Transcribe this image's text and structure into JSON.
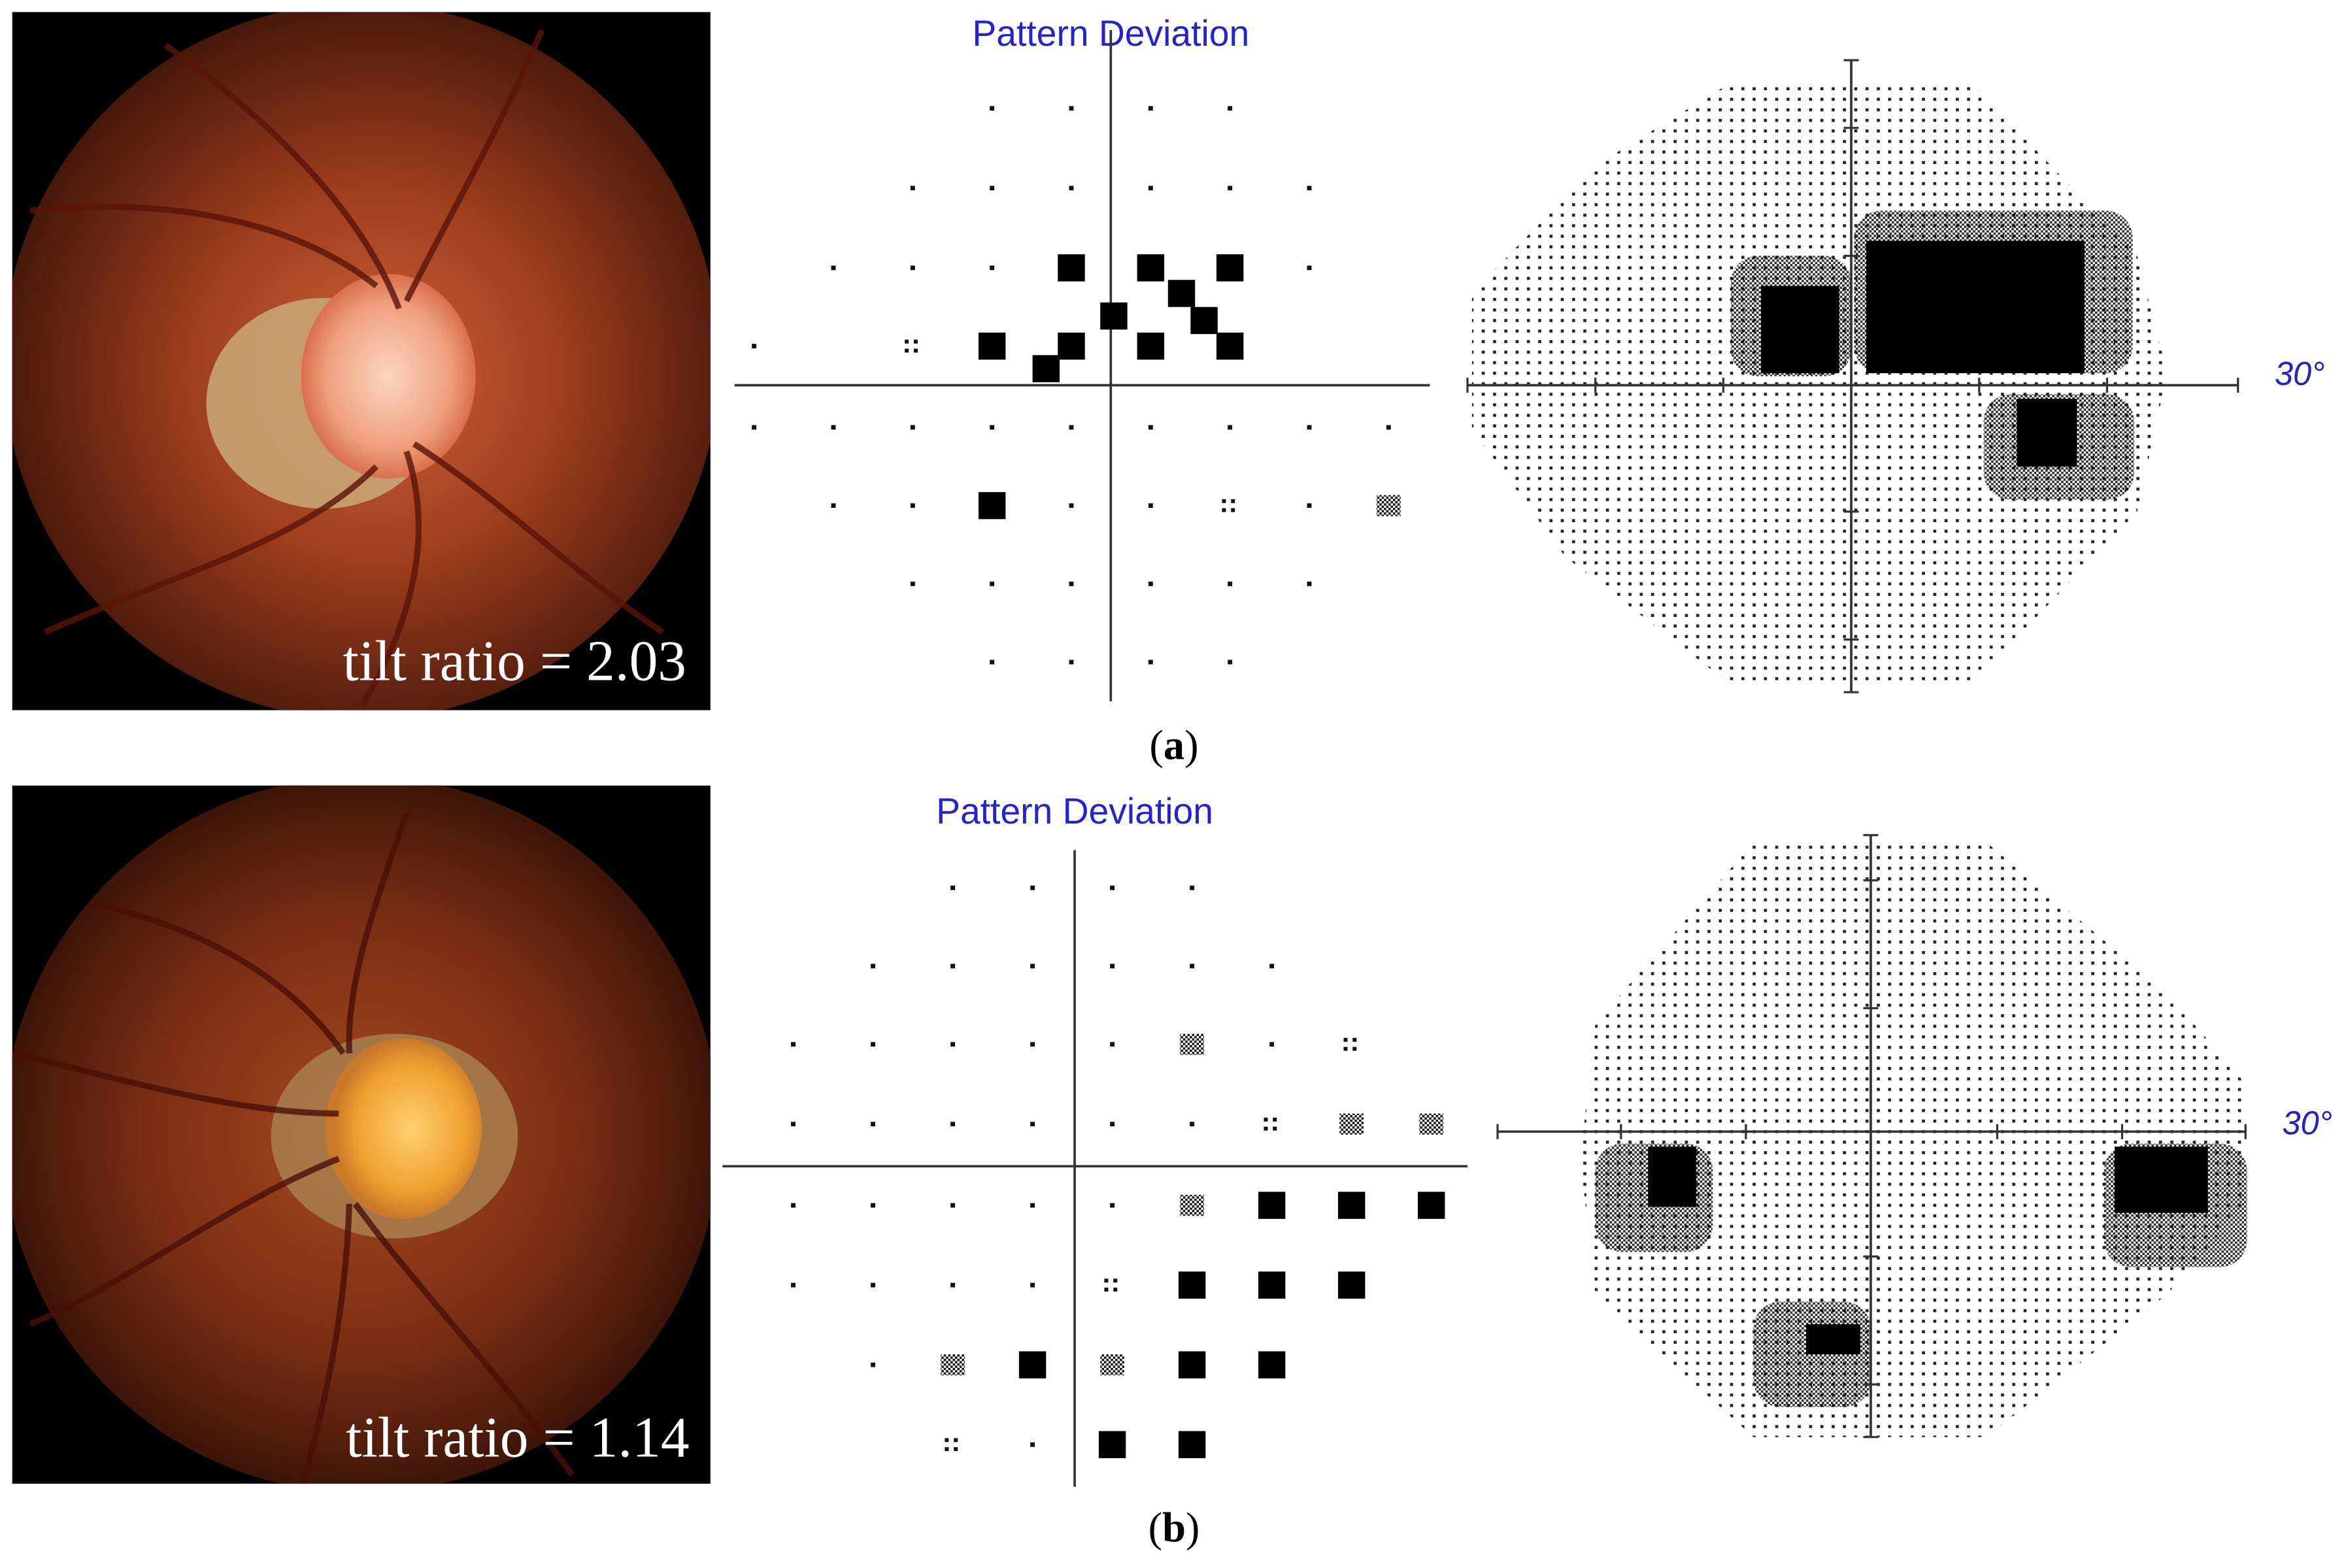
{
  "panels": [
    {
      "fundus": {
        "annotation": "tilt ratio = 2.03"
      },
      "pattern_deviation": {
        "title": "Pattern Deviation"
      },
      "grayscale": {
        "axis_label": "30°"
      },
      "caption": {
        "open": "(",
        "label": "a",
        "close": ")"
      }
    },
    {
      "fundus": {
        "annotation": "tilt ratio = 1.14"
      },
      "pattern_deviation": {
        "title": "Pattern Deviation"
      },
      "grayscale": {
        "axis_label": "30°"
      },
      "caption": {
        "open": "(",
        "label": "b",
        "close": ")"
      }
    }
  ]
}
